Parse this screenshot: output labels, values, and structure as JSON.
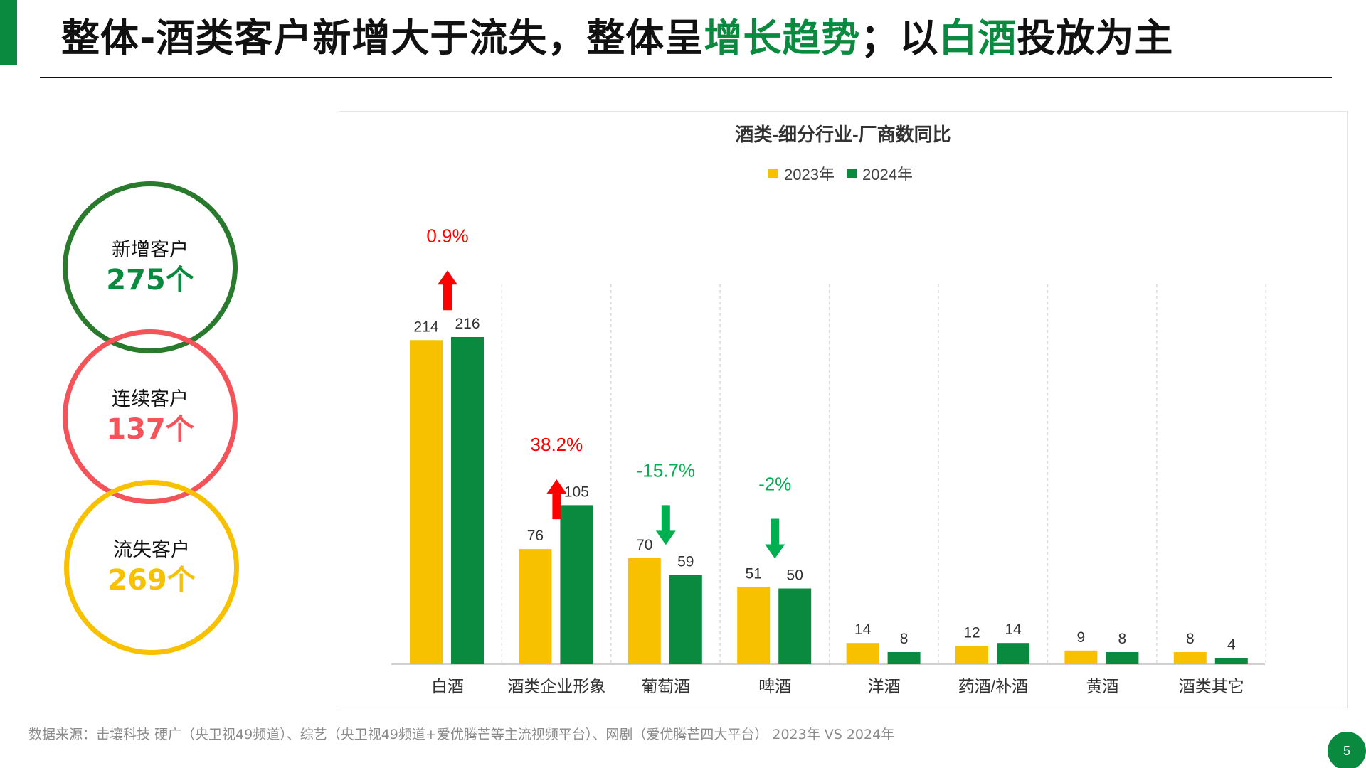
{
  "title": {
    "part1": "整体-酒类客户新增大于流失，整体呈",
    "highlight1": "增长趋势",
    "part2": "；以",
    "highlight2": "白酒",
    "part3": "投放为主"
  },
  "stats": {
    "new": {
      "label": "新增客户",
      "value": "275个"
    },
    "continuing": {
      "label": "连续客户",
      "value": "137个"
    },
    "lost": {
      "label": "流失客户",
      "value": "269个"
    }
  },
  "colors": {
    "brand_green": "#0a8a3f",
    "series_2023": "#f8c100",
    "series_2024": "#0a8a3f",
    "up": "#ff0000",
    "down": "#00b050",
    "lost": "#f8c100",
    "continuing": "#f4535a"
  },
  "chart_data": {
    "type": "bar",
    "title": "酒类-细分行业-厂商数同比",
    "categories": [
      "白酒",
      "酒类企业形象",
      "葡萄酒",
      "啤酒",
      "洋酒",
      "药酒/补酒",
      "黄酒",
      "酒类其它"
    ],
    "series": [
      {
        "name": "2023年",
        "values": [
          214,
          76,
          70,
          51,
          14,
          12,
          9,
          8
        ]
      },
      {
        "name": "2024年",
        "values": [
          216,
          105,
          59,
          50,
          8,
          14,
          8,
          4
        ]
      }
    ],
    "annotations": [
      {
        "category": "白酒",
        "text": "0.9%",
        "direction": "up"
      },
      {
        "category": "酒类企业形象",
        "text": "38.2%",
        "direction": "up"
      },
      {
        "category": "葡萄酒",
        "text": "-15.7%",
        "direction": "down"
      },
      {
        "category": "啤酒",
        "text": "-2%",
        "direction": "down"
      }
    ],
    "ylim": [
      0,
      250
    ],
    "legend_position": "top-center",
    "grid": "vertical dashed separators"
  },
  "footnote": "数据来源：击壤科技  硬广（央卫视49频道）、综艺（央卫视49频道+爱优腾芒等主流视频平台）、网剧（爱优腾芒四大平台）  2023年 VS 2024年",
  "page_number": "5"
}
